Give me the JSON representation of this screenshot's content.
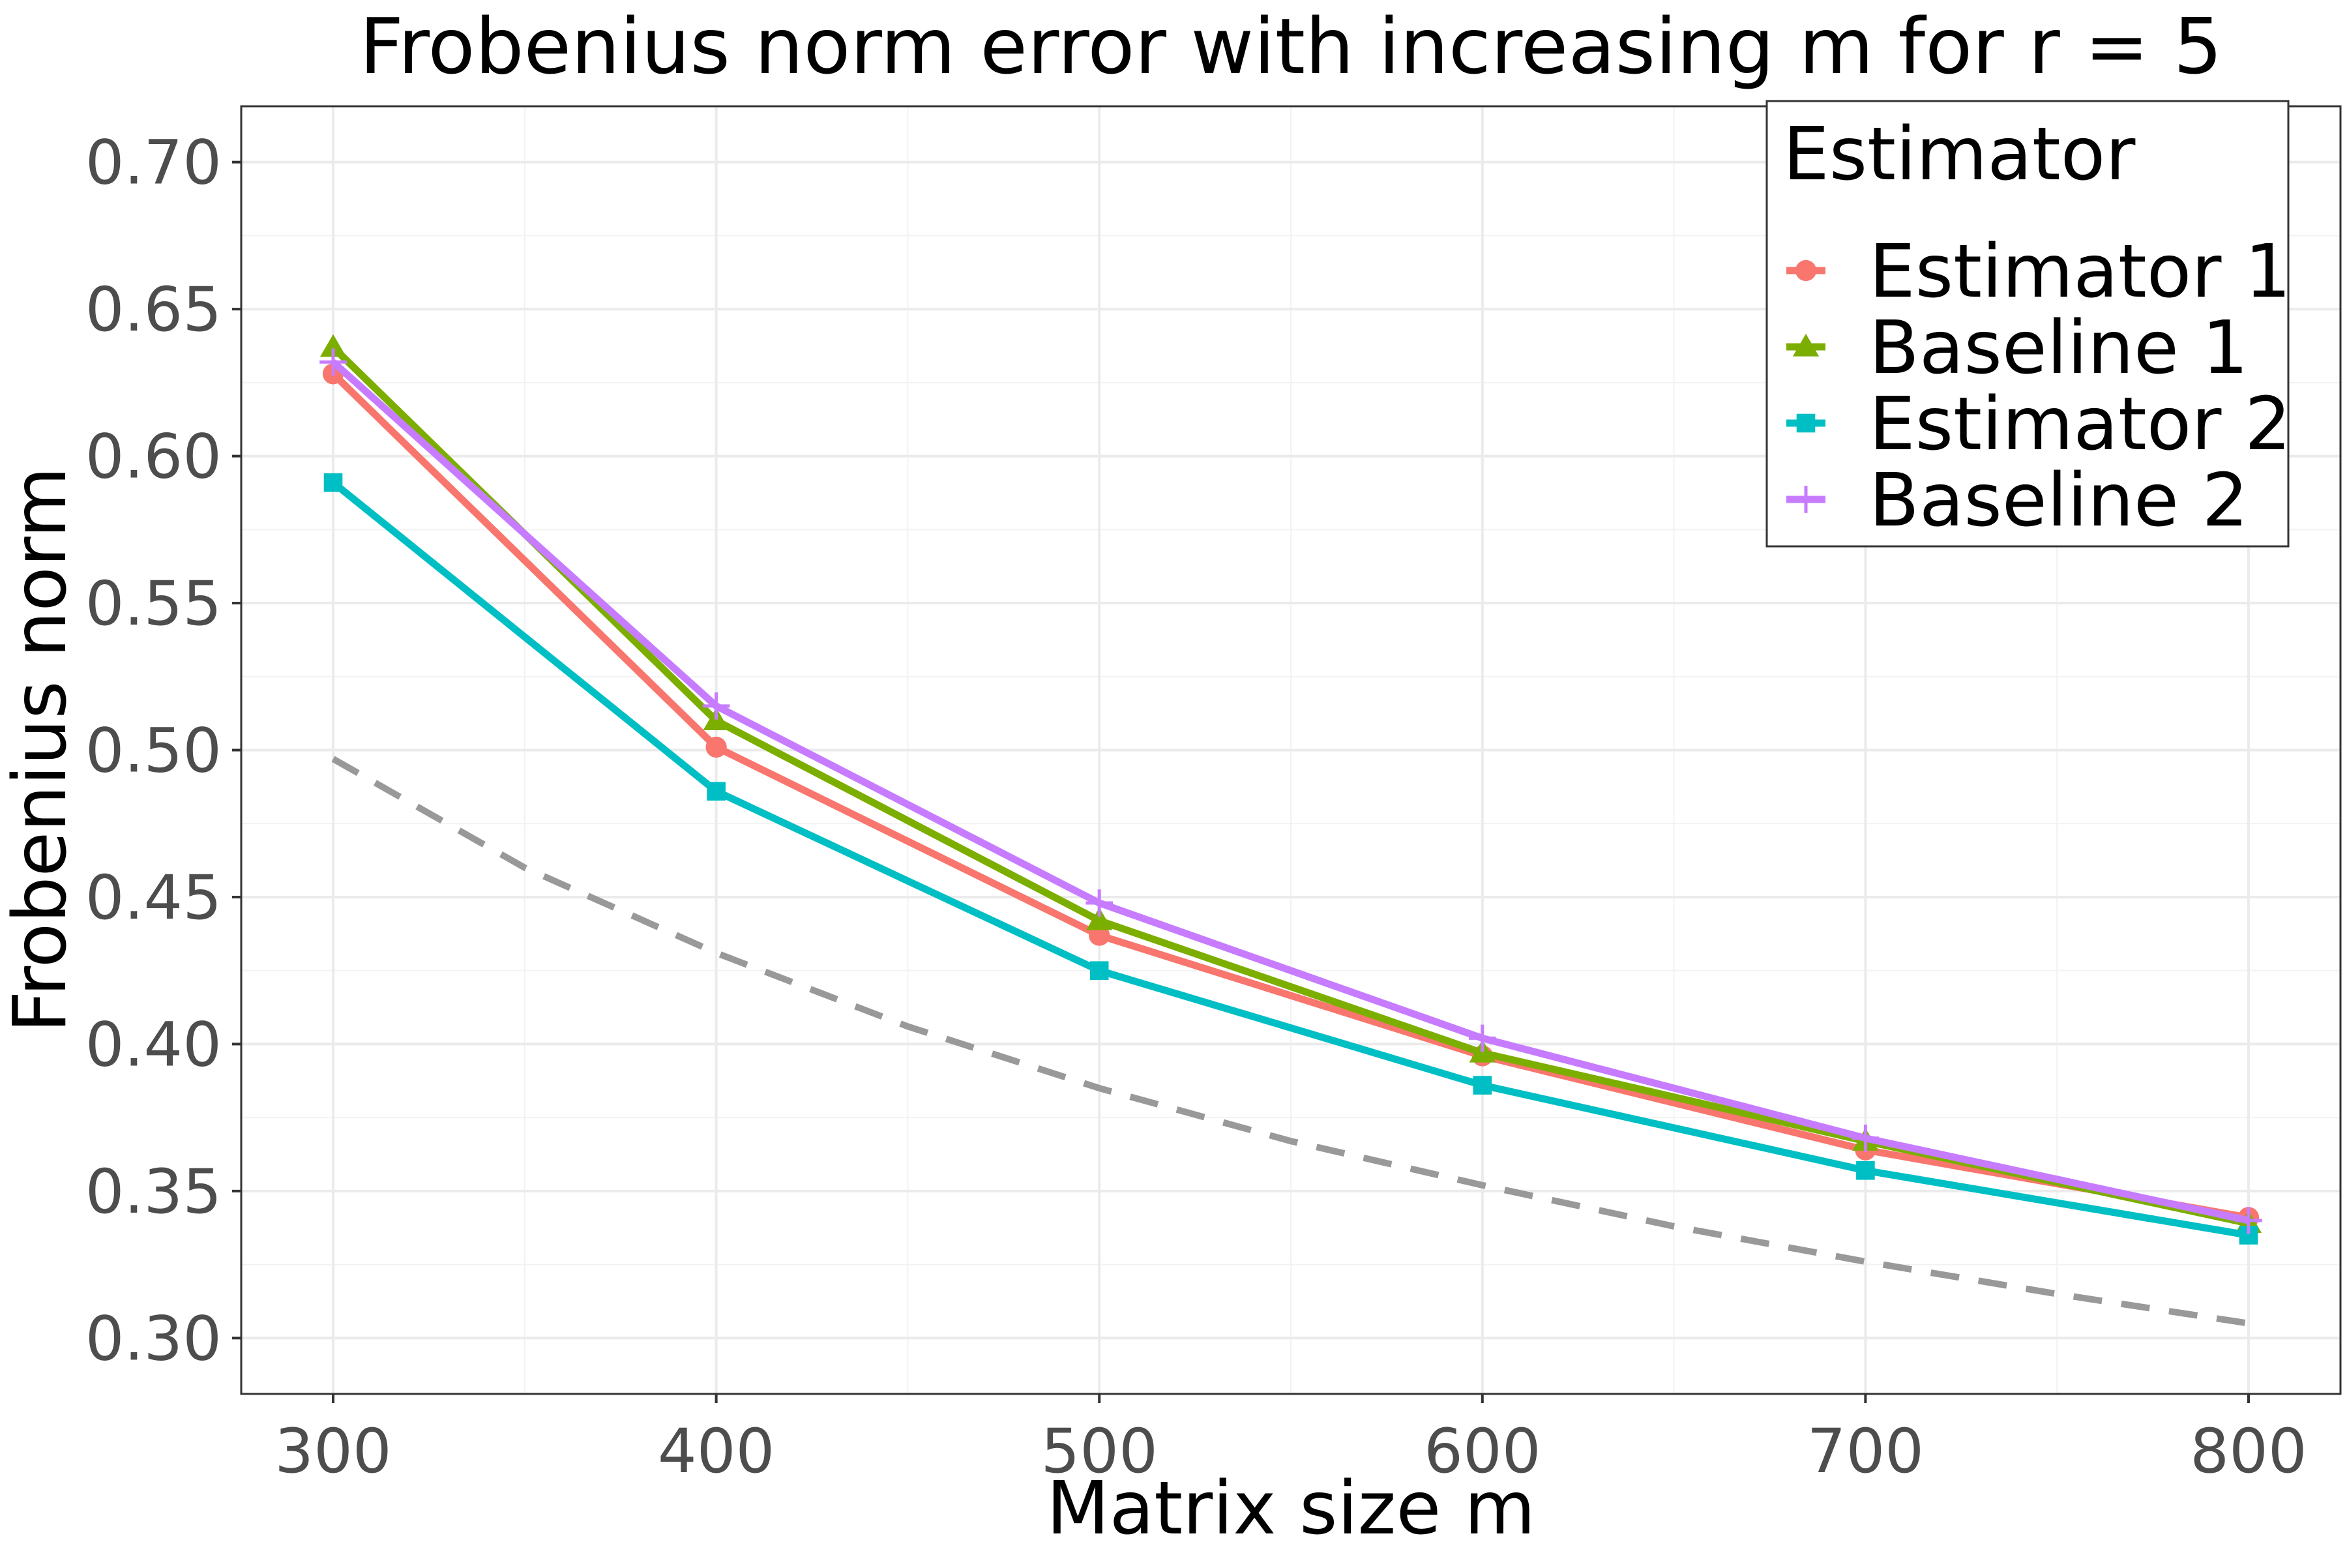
{
  "chart_data": {
    "type": "line",
    "title": "Frobenius norm error with increasing m for r = 5",
    "xlabel": "Matrix size m",
    "ylabel": "Frobenius norm",
    "x": [
      300,
      400,
      500,
      600,
      700,
      800
    ],
    "xlim": [
      276,
      824
    ],
    "ylim": [
      0.281,
      0.719
    ],
    "x_ticks": [
      "300",
      "400",
      "500",
      "600",
      "700",
      "800"
    ],
    "y_ticks": [
      "0.30",
      "0.35",
      "0.40",
      "0.45",
      "0.50",
      "0.55",
      "0.60",
      "0.65",
      "0.70"
    ],
    "grid": true,
    "legend": {
      "title": "Estimator",
      "position": "top-right"
    },
    "series": [
      {
        "name": "Estimator 1",
        "color": "#F8766D",
        "marker": "circle",
        "values": [
          0.628,
          0.501,
          0.437,
          0.396,
          0.364,
          0.341
        ]
      },
      {
        "name": "Baseline 1",
        "color": "#7CAE00",
        "marker": "triangle",
        "values": [
          0.637,
          0.51,
          0.442,
          0.397,
          0.367,
          0.339
        ]
      },
      {
        "name": "Estimator 2",
        "color": "#00BFC4",
        "marker": "square",
        "values": [
          0.591,
          0.486,
          0.425,
          0.386,
          0.357,
          0.335
        ]
      },
      {
        "name": "Baseline 2",
        "color": "#C77CFF",
        "marker": "plus",
        "values": [
          0.632,
          0.515,
          0.448,
          0.402,
          0.368,
          0.34
        ]
      }
    ],
    "reference_curve": {
      "style": "dashed",
      "color": "#999999",
      "x": [
        300,
        350,
        400,
        450,
        500,
        550,
        600,
        650,
        700,
        750,
        800
      ],
      "values": [
        0.497,
        0.46,
        0.431,
        0.406,
        0.385,
        0.367,
        0.352,
        0.338,
        0.326,
        0.315,
        0.305
      ]
    }
  }
}
